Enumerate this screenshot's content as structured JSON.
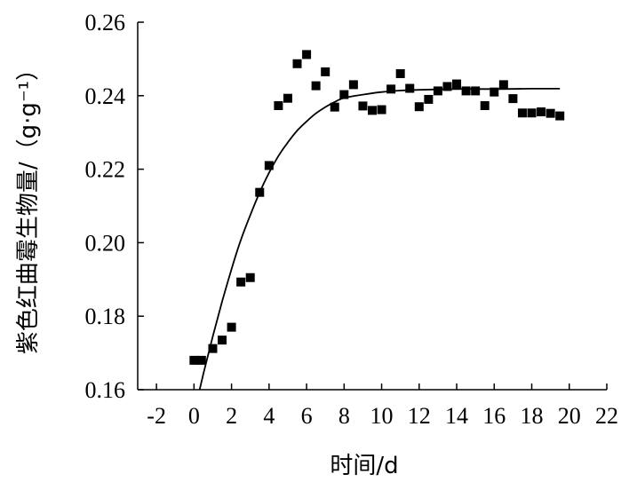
{
  "chart_data": {
    "type": "scatter",
    "xlabel": "时间/d",
    "ylabel": "紫色红曲霉生物量/（g·g⁻¹）",
    "xlim": [
      -3,
      22
    ],
    "ylim": [
      0.16,
      0.26
    ],
    "x_ticks": [
      "-2",
      "0",
      "2",
      "4",
      "6",
      "8",
      "10",
      "12",
      "14",
      "16",
      "18",
      "20",
      "22"
    ],
    "y_ticks": [
      "0.16",
      "0.18",
      "0.20",
      "0.22",
      "0.24",
      "0.26"
    ],
    "grid": false,
    "legend": "none",
    "series": [
      {
        "style": "square-markers",
        "color": "#000000",
        "points": [
          [
            0.0,
            0.168
          ],
          [
            0.4,
            0.168
          ],
          [
            1.0,
            0.1712
          ],
          [
            1.5,
            0.1735
          ],
          [
            2.0,
            0.177
          ],
          [
            2.5,
            0.1893
          ],
          [
            3.0,
            0.1905
          ],
          [
            3.5,
            0.2137
          ],
          [
            4.0,
            0.221
          ],
          [
            4.5,
            0.2373
          ],
          [
            5.0,
            0.2393
          ],
          [
            5.5,
            0.2487
          ],
          [
            6.0,
            0.2512
          ],
          [
            6.5,
            0.2427
          ],
          [
            7.0,
            0.2465
          ],
          [
            7.5,
            0.2369
          ],
          [
            8.0,
            0.2403
          ],
          [
            8.5,
            0.243
          ],
          [
            9.0,
            0.2372
          ],
          [
            9.5,
            0.236
          ],
          [
            10.0,
            0.2362
          ],
          [
            10.5,
            0.2418
          ],
          [
            11.0,
            0.246
          ],
          [
            11.5,
            0.242
          ],
          [
            12.0,
            0.237
          ],
          [
            12.5,
            0.239
          ],
          [
            13.0,
            0.2413
          ],
          [
            13.5,
            0.2425
          ],
          [
            14.0,
            0.2432
          ],
          [
            14.5,
            0.2413
          ],
          [
            15.0,
            0.2413
          ],
          [
            15.5,
            0.2373
          ],
          [
            16.0,
            0.241
          ],
          [
            16.5,
            0.243
          ],
          [
            17.0,
            0.2392
          ],
          [
            17.5,
            0.2353
          ],
          [
            18.0,
            0.2353
          ],
          [
            18.5,
            0.2356
          ],
          [
            19.0,
            0.2352
          ],
          [
            19.5,
            0.2345
          ]
        ]
      },
      {
        "style": "fitted-curve",
        "color": "#000000",
        "points": [
          [
            0.3,
            0.16
          ],
          [
            0.5,
            0.1643
          ],
          [
            1.0,
            0.1745
          ],
          [
            1.5,
            0.184
          ],
          [
            2.0,
            0.1928
          ],
          [
            2.5,
            0.2008
          ],
          [
            3.0,
            0.2075
          ],
          [
            3.5,
            0.2137
          ],
          [
            4.0,
            0.219
          ],
          [
            4.5,
            0.2236
          ],
          [
            5.0,
            0.2273
          ],
          [
            5.5,
            0.2305
          ],
          [
            6.0,
            0.233
          ],
          [
            6.5,
            0.2352
          ],
          [
            7.0,
            0.2369
          ],
          [
            7.5,
            0.2383
          ],
          [
            8.0,
            0.2394
          ],
          [
            9.0,
            0.2403
          ],
          [
            10.0,
            0.241
          ],
          [
            11.0,
            0.2414
          ],
          [
            12.0,
            0.2416
          ],
          [
            14.0,
            0.2418
          ],
          [
            16.0,
            0.2418
          ],
          [
            18.0,
            0.2419
          ],
          [
            19.5,
            0.2419
          ]
        ]
      }
    ]
  }
}
